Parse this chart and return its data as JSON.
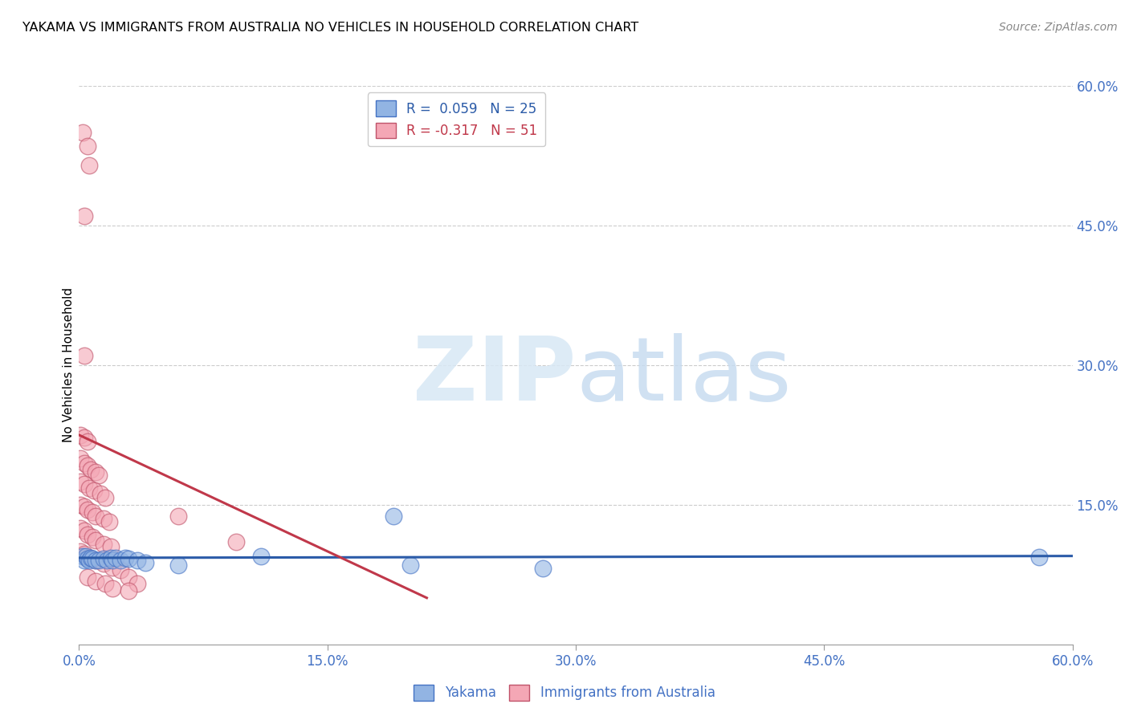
{
  "title": "YAKAMA VS IMMIGRANTS FROM AUSTRALIA NO VEHICLES IN HOUSEHOLD CORRELATION CHART",
  "source": "Source: ZipAtlas.com",
  "ylabel": "No Vehicles in Household",
  "xlim": [
    0.0,
    0.6
  ],
  "ylim": [
    0.0,
    0.6
  ],
  "xticks": [
    0.0,
    0.15,
    0.3,
    0.45,
    0.6
  ],
  "yticks": [
    0.0,
    0.15,
    0.3,
    0.45,
    0.6
  ],
  "grid_lines": [
    0.15,
    0.3,
    0.45,
    0.6
  ],
  "blue_color": "#92B4E3",
  "blue_edge": "#4472C4",
  "pink_color": "#F4A7B5",
  "pink_edge": "#C0536A",
  "trend_blue_color": "#2B5BA8",
  "trend_pink_color": "#C0384A",
  "yakama_points": [
    [
      0.002,
      0.095
    ],
    [
      0.003,
      0.09
    ],
    [
      0.004,
      0.095
    ],
    [
      0.005,
      0.092
    ],
    [
      0.006,
      0.09
    ],
    [
      0.007,
      0.093
    ],
    [
      0.008,
      0.092
    ],
    [
      0.01,
      0.09
    ],
    [
      0.012,
      0.09
    ],
    [
      0.015,
      0.092
    ],
    [
      0.017,
      0.09
    ],
    [
      0.019,
      0.093
    ],
    [
      0.02,
      0.09
    ],
    [
      0.022,
      0.093
    ],
    [
      0.025,
      0.09
    ],
    [
      0.028,
      0.093
    ],
    [
      0.03,
      0.092
    ],
    [
      0.035,
      0.09
    ],
    [
      0.04,
      0.088
    ],
    [
      0.06,
      0.085
    ],
    [
      0.11,
      0.095
    ],
    [
      0.19,
      0.138
    ],
    [
      0.2,
      0.085
    ],
    [
      0.28,
      0.082
    ],
    [
      0.58,
      0.094
    ]
  ],
  "australia_points": [
    [
      0.002,
      0.55
    ],
    [
      0.005,
      0.535
    ],
    [
      0.006,
      0.515
    ],
    [
      0.003,
      0.46
    ],
    [
      0.003,
      0.31
    ],
    [
      0.001,
      0.225
    ],
    [
      0.003,
      0.222
    ],
    [
      0.005,
      0.218
    ],
    [
      0.001,
      0.2
    ],
    [
      0.003,
      0.195
    ],
    [
      0.005,
      0.192
    ],
    [
      0.007,
      0.188
    ],
    [
      0.01,
      0.185
    ],
    [
      0.012,
      0.182
    ],
    [
      0.001,
      0.175
    ],
    [
      0.003,
      0.172
    ],
    [
      0.006,
      0.168
    ],
    [
      0.009,
      0.165
    ],
    [
      0.013,
      0.162
    ],
    [
      0.016,
      0.158
    ],
    [
      0.001,
      0.15
    ],
    [
      0.003,
      0.148
    ],
    [
      0.005,
      0.145
    ],
    [
      0.008,
      0.142
    ],
    [
      0.01,
      0.138
    ],
    [
      0.015,
      0.135
    ],
    [
      0.018,
      0.132
    ],
    [
      0.001,
      0.125
    ],
    [
      0.003,
      0.122
    ],
    [
      0.005,
      0.118
    ],
    [
      0.008,
      0.115
    ],
    [
      0.01,
      0.112
    ],
    [
      0.015,
      0.108
    ],
    [
      0.019,
      0.105
    ],
    [
      0.001,
      0.1
    ],
    [
      0.003,
      0.097
    ],
    [
      0.006,
      0.093
    ],
    [
      0.01,
      0.09
    ],
    [
      0.015,
      0.087
    ],
    [
      0.02,
      0.083
    ],
    [
      0.025,
      0.08
    ],
    [
      0.005,
      0.072
    ],
    [
      0.01,
      0.068
    ],
    [
      0.016,
      0.065
    ],
    [
      0.02,
      0.06
    ],
    [
      0.06,
      0.138
    ],
    [
      0.095,
      0.11
    ],
    [
      0.03,
      0.072
    ],
    [
      0.035,
      0.065
    ],
    [
      0.03,
      0.058
    ]
  ],
  "blue_trend_x": [
    0.0,
    0.6
  ],
  "blue_trend_y": [
    0.093,
    0.095
  ],
  "pink_trend_x": [
    0.0,
    0.21
  ],
  "pink_trend_y": [
    0.225,
    0.05
  ]
}
